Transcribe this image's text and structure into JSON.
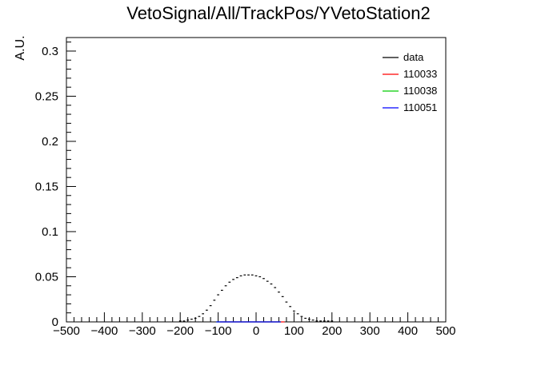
{
  "chart_data": {
    "type": "histogram",
    "title": "VetoSignal/All/TrackPos/YVetoStation2",
    "xlabel": "",
    "ylabel": "A.U.",
    "xlim": [
      -500,
      500
    ],
    "ylim": [
      0,
      0.315
    ],
    "bin_width": 10,
    "x_ticks": [
      -500,
      -400,
      -300,
      -200,
      -100,
      0,
      100,
      200,
      300,
      400,
      500
    ],
    "y_ticks": [
      0,
      0.05,
      0.1,
      0.15,
      0.2,
      0.25,
      0.3
    ],
    "x_tick_labels": [
      "−500",
      "−400",
      "−300",
      "−200",
      "−100",
      "0",
      "100",
      "200",
      "300",
      "400",
      "500"
    ],
    "y_tick_labels": [
      "0",
      "0.05",
      "0.1",
      "0.15",
      "0.2",
      "0.25",
      "0.3"
    ],
    "legend": {
      "position": "top-right",
      "entries": [
        {
          "label": "data",
          "color": "#000000"
        },
        {
          "label": "110033",
          "color": "#ff0000"
        },
        {
          "label": "110038",
          "color": "#00cc00"
        },
        {
          "label": "110051",
          "color": "#0000ff"
        }
      ]
    },
    "series": [
      {
        "name": "data",
        "color": "#000000",
        "style": "markers",
        "x": [
          -200,
          -190,
          -180,
          -170,
          -160,
          -150,
          -140,
          -130,
          -120,
          -110,
          -100,
          -90,
          -80,
          -70,
          -60,
          -50,
          -40,
          -30,
          -20,
          -10,
          0,
          10,
          20,
          30,
          40,
          50,
          60,
          70,
          80,
          90,
          100,
          110,
          120,
          130,
          140,
          150,
          160,
          170,
          180,
          190,
          200
        ],
        "values": [
          0.001,
          0.001,
          0.002,
          0.003,
          0.004,
          0.006,
          0.009,
          0.013,
          0.018,
          0.024,
          0.03,
          0.035,
          0.04,
          0.044,
          0.047,
          0.049,
          0.051,
          0.052,
          0.052,
          0.052,
          0.051,
          0.05,
          0.048,
          0.045,
          0.042,
          0.038,
          0.033,
          0.028,
          0.022,
          0.017,
          0.012,
          0.009,
          0.006,
          0.004,
          0.003,
          0.002,
          0.001,
          0.001,
          0.001,
          0.001,
          0.001
        ]
      },
      {
        "name": "110033",
        "color": "#ff0000",
        "style": "step",
        "x": [
          -90,
          -80,
          -70,
          -60,
          -50,
          -40,
          -30,
          -20,
          -10,
          0,
          10,
          20,
          30,
          40,
          50,
          60,
          70
        ],
        "values": [
          0.0,
          0.0,
          0.0,
          0.0,
          0.0,
          0.0,
          0.0,
          0.0,
          0.0,
          0.0,
          0.0,
          0.0,
          0.0,
          0.0,
          0.0,
          0.0,
          0.0
        ]
      },
      {
        "name": "110038",
        "color": "#00cc00",
        "style": "step",
        "x": [
          -100,
          -90,
          -80,
          -70,
          -60,
          -50,
          -40,
          -30,
          -20,
          -10,
          0,
          10,
          20,
          30,
          40,
          50,
          60
        ],
        "values": [
          0.0,
          0.0,
          0.0,
          0.0,
          0.0,
          0.0,
          0.0,
          0.0,
          0.0,
          0.0,
          0.0,
          0.0,
          0.0,
          0.0,
          0.0,
          0.0,
          0.0
        ]
      },
      {
        "name": "110051",
        "color": "#0000ff",
        "style": "step",
        "x": [
          -100,
          -90,
          -80,
          -70,
          -60,
          -50,
          -40,
          -30,
          -20,
          -10,
          0,
          10,
          20,
          30,
          40,
          50,
          60
        ],
        "values": [
          0.0,
          0.0,
          0.0,
          0.0,
          0.0,
          0.0,
          0.0,
          0.0,
          0.0,
          0.0,
          0.0,
          0.0,
          0.0,
          0.0,
          0.0,
          0.0,
          0.0
        ]
      }
    ]
  }
}
